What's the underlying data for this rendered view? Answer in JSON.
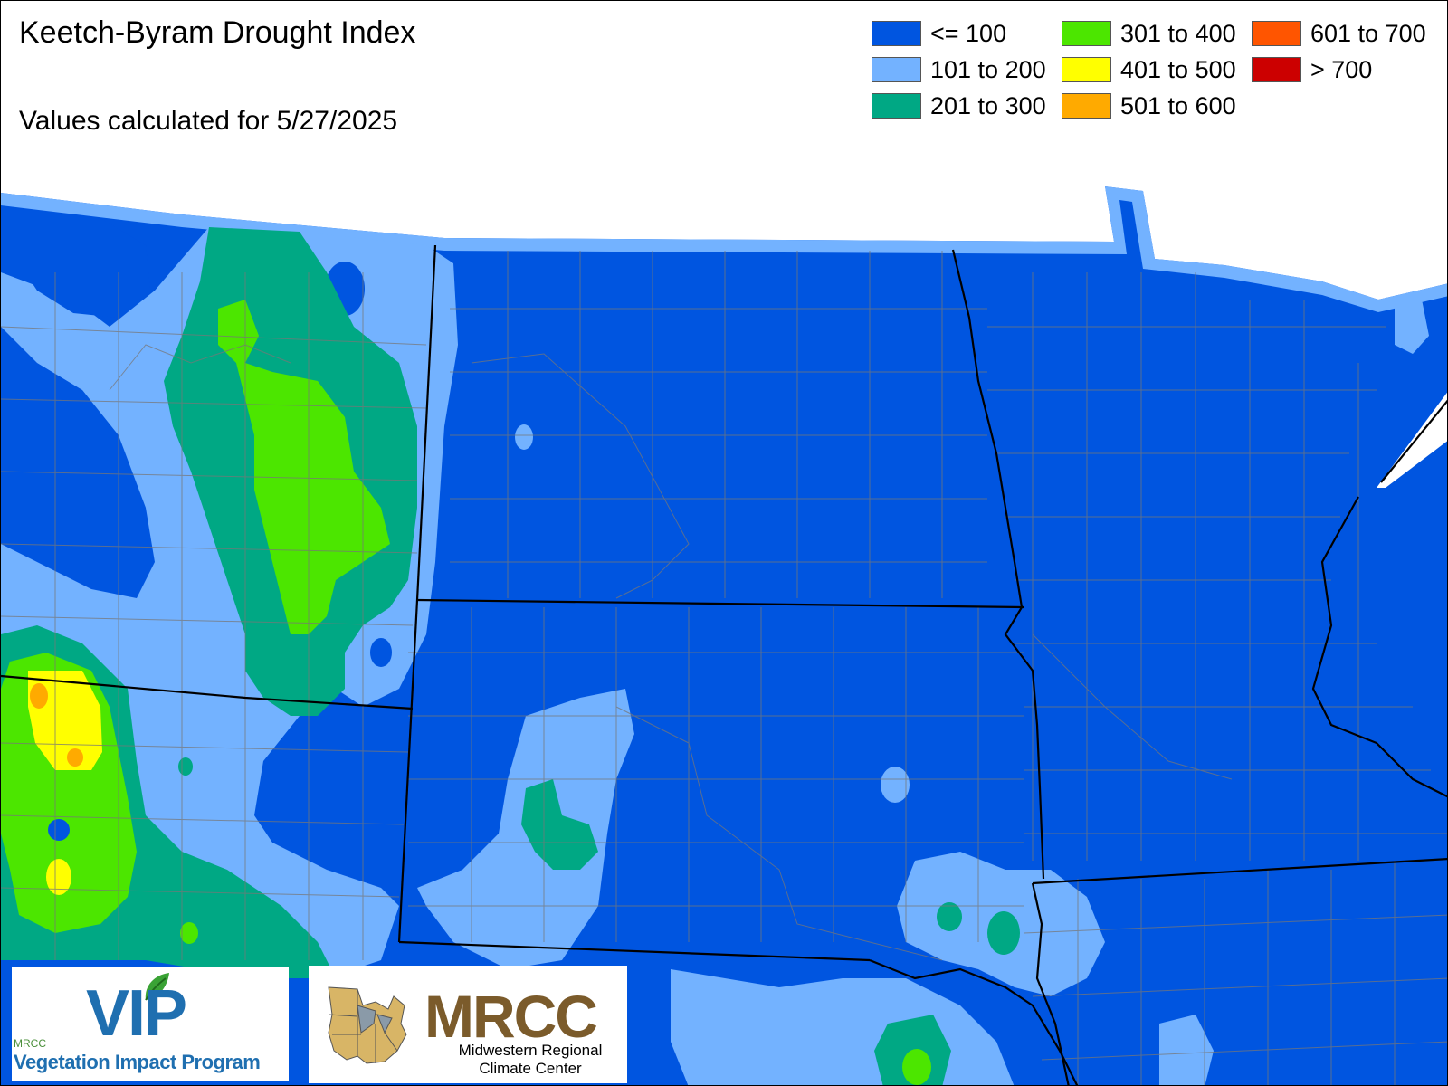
{
  "header": {
    "title": "Keetch-Byram Drought Index",
    "subtitle": "Values calculated for 5/27/2025"
  },
  "legend": [
    {
      "label": "<= 100",
      "color": "#0055e0"
    },
    {
      "label": "101 to 200",
      "color": "#73b2ff"
    },
    {
      "label": "201 to 300",
      "color": "#00a884"
    },
    {
      "label": "301 to 400",
      "color": "#4ce600"
    },
    {
      "label": "401 to 500",
      "color": "#ffff00"
    },
    {
      "label": "501 to 600",
      "color": "#ffaa00"
    },
    {
      "label": "601 to 700",
      "color": "#ff5500"
    },
    {
      "label": "> 700",
      "color": "#cc0000"
    }
  ],
  "logos": {
    "vip": {
      "name": "VIP",
      "small": "MRCC",
      "subtitle": "Vegetation Impact Program",
      "icon": "leaf-icon"
    },
    "mrcc": {
      "name": "MRCC",
      "line1": "Midwestern Regional",
      "line2": "Climate Center",
      "icon": "midwest-map-icon"
    }
  }
}
